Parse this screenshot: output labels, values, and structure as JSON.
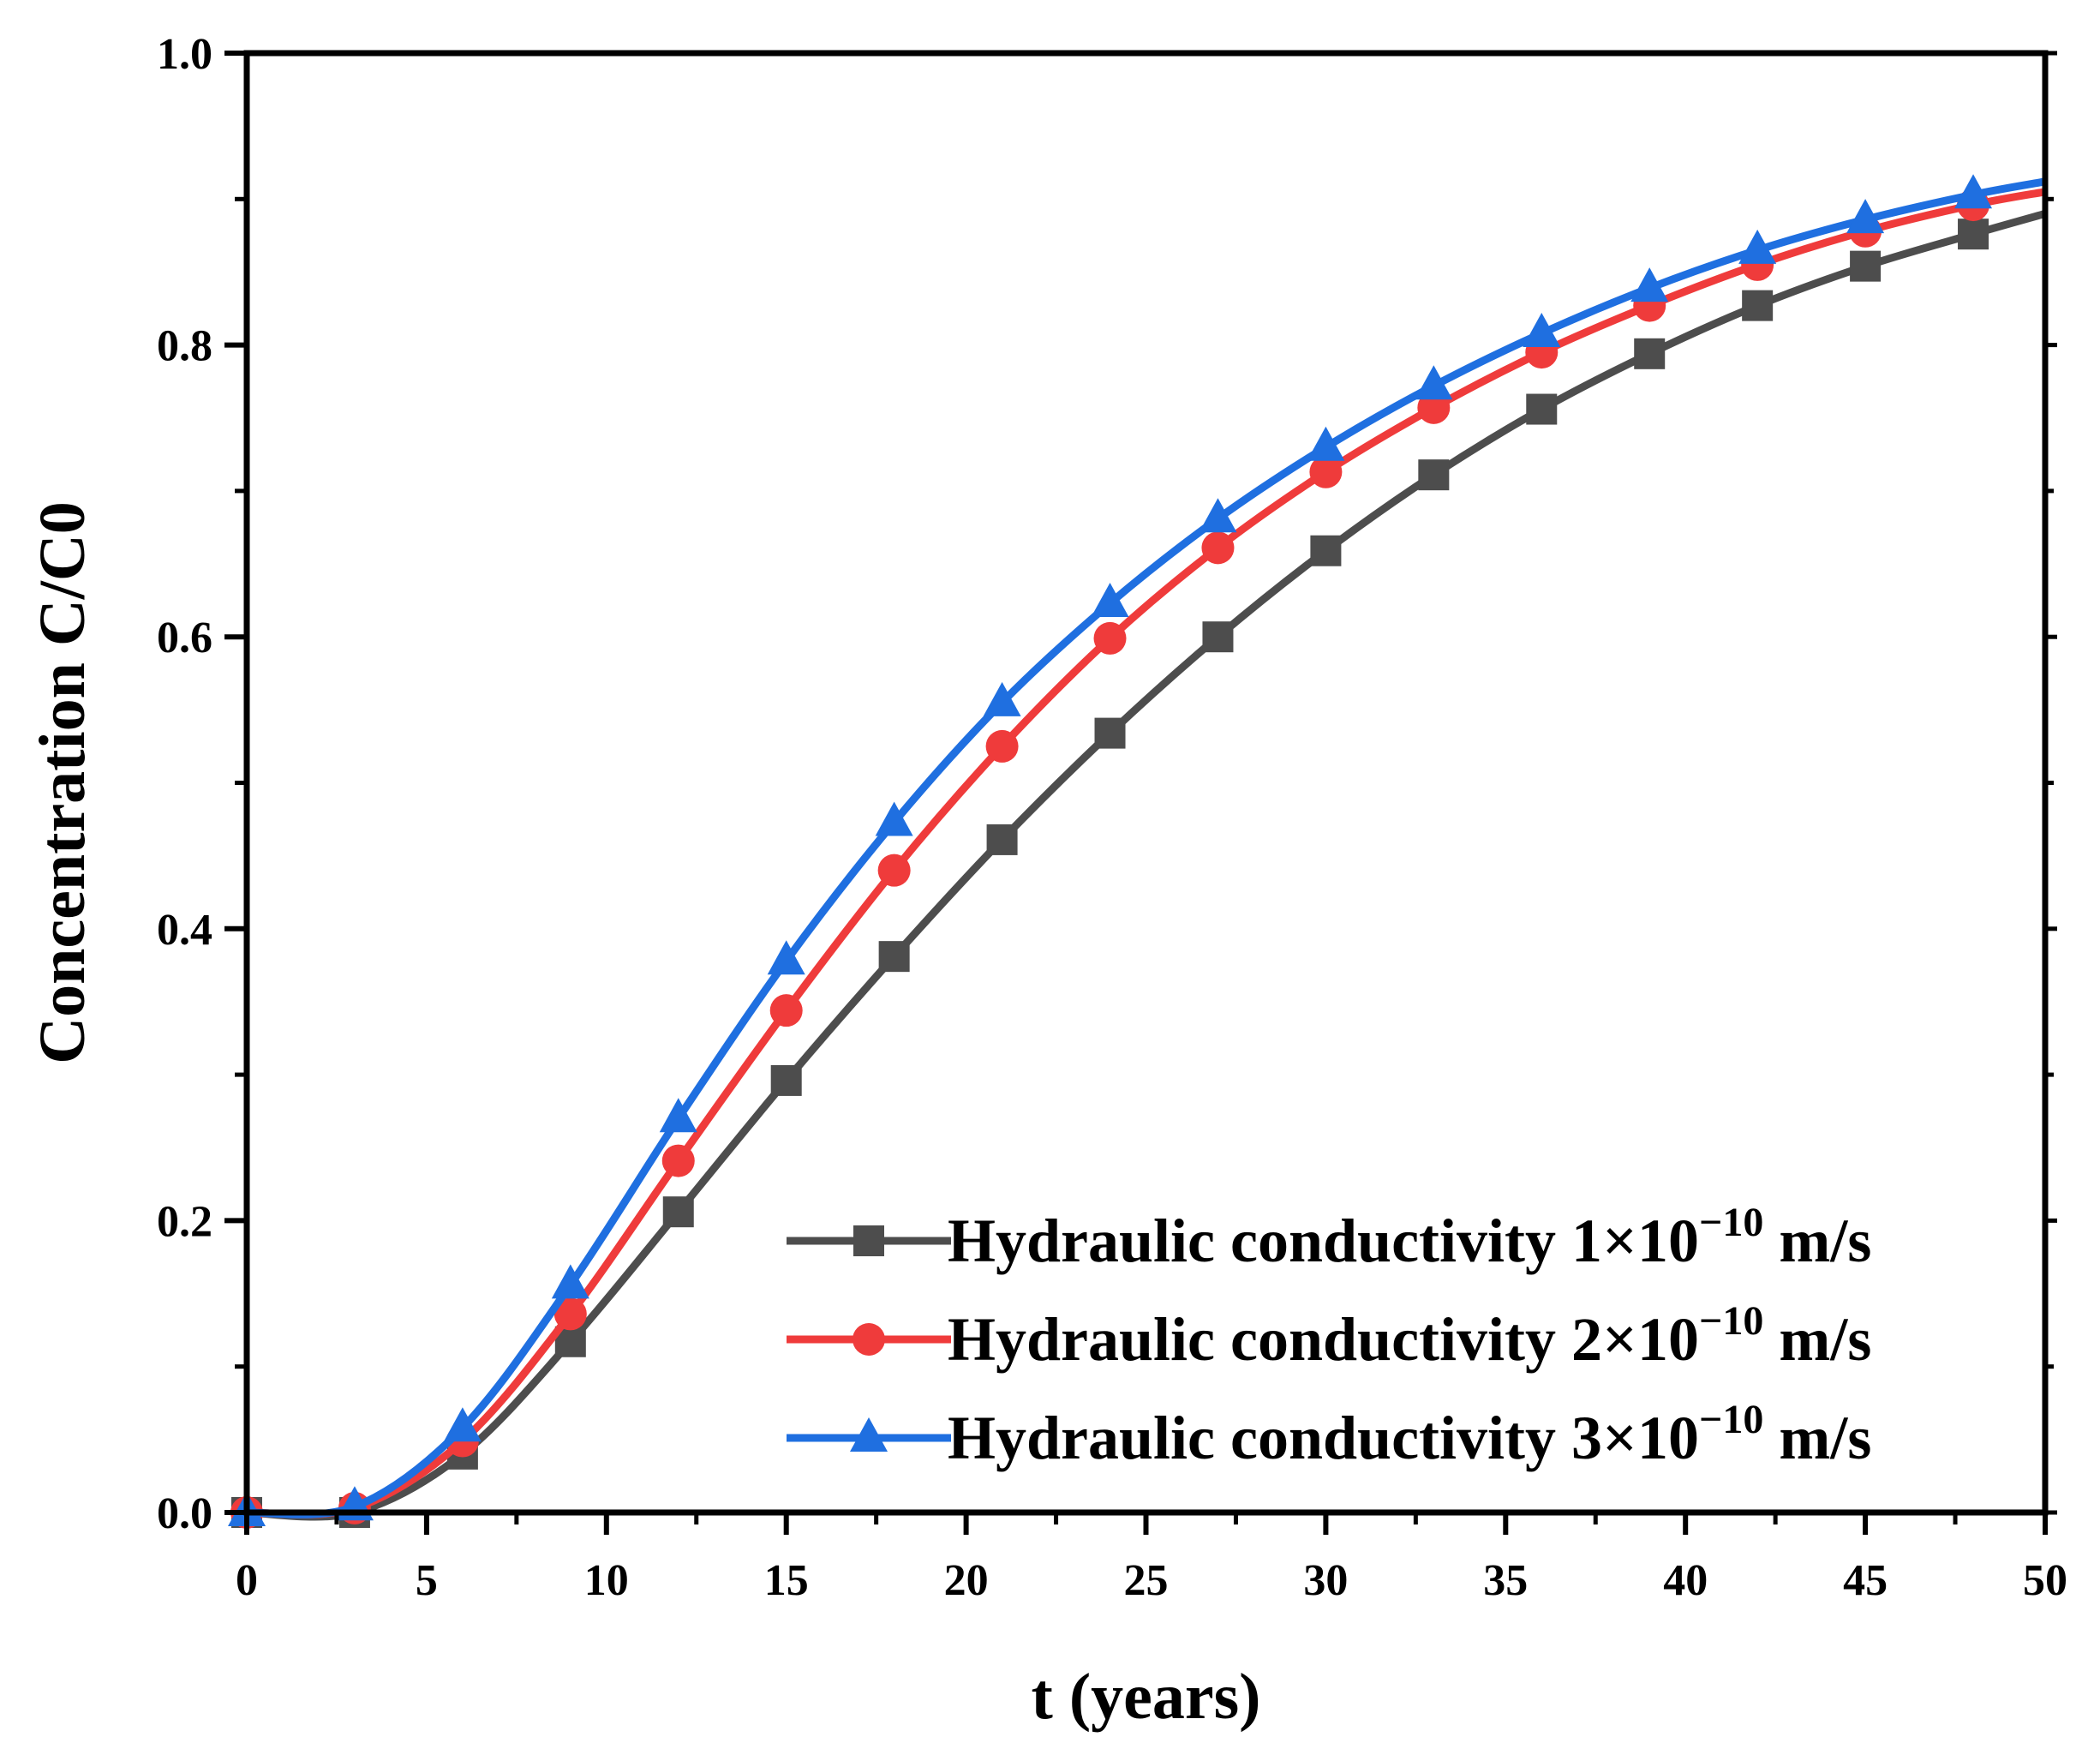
{
  "chart_data": {
    "type": "line",
    "title": "",
    "xlabel": "t (years)",
    "ylabel": "Concentration C/C0",
    "xlim": [
      0,
      50
    ],
    "ylim": [
      0,
      1.0
    ],
    "xticks": [
      0,
      5,
      10,
      15,
      20,
      25,
      30,
      35,
      40,
      45,
      50
    ],
    "xtick_labels": [
      "0",
      "5",
      "10",
      "15",
      "20",
      "25",
      "30",
      "35",
      "40",
      "45",
      "50"
    ],
    "yticks": [
      0,
      0.2,
      0.4,
      0.6,
      0.8,
      1.0
    ],
    "ytick_labels": [
      "0.0",
      "0.2",
      "0.4",
      "0.6",
      "0.8",
      "1.0"
    ],
    "grid": false,
    "legend_position": "bottom-right",
    "series": [
      {
        "name_prefix": "Hydraulic conductivity 1×10",
        "name_exponent": "−10",
        "name_suffix": " m/s",
        "color": "#4d4d4d",
        "marker": "square",
        "x": [
          0,
          3,
          6,
          9,
          12,
          15,
          18,
          21,
          24,
          27,
          30,
          33,
          36,
          39,
          42,
          45,
          48,
          50
        ],
        "y": [
          0.0,
          0.0,
          0.04,
          0.117,
          0.206,
          0.296,
          0.381,
          0.461,
          0.534,
          0.6,
          0.659,
          0.711,
          0.756,
          0.794,
          0.827,
          0.854,
          0.876,
          0.89
        ]
      },
      {
        "name_prefix": "Hydraulic conductivity 2×10",
        "name_exponent": "−10",
        "name_suffix": " m/s",
        "color": "#ef3b3b",
        "marker": "circle",
        "x": [
          0,
          3,
          6,
          9,
          12,
          15,
          18,
          21,
          24,
          27,
          30,
          33,
          36,
          39,
          42,
          45,
          48,
          50
        ],
        "y": [
          0.0,
          0.003,
          0.049,
          0.136,
          0.241,
          0.344,
          0.44,
          0.525,
          0.599,
          0.661,
          0.713,
          0.757,
          0.795,
          0.827,
          0.855,
          0.878,
          0.896,
          0.905
        ]
      },
      {
        "name_prefix": "Hydraulic conductivity 3×10",
        "name_exponent": "−10",
        "name_suffix": " m/s",
        "color": "#1f6fe0",
        "marker": "triangle",
        "x": [
          0,
          3,
          6,
          9,
          12,
          15,
          18,
          21,
          24,
          27,
          30,
          33,
          36,
          39,
          42,
          45,
          48,
          50
        ],
        "y": [
          0.0,
          0.004,
          0.058,
          0.156,
          0.27,
          0.378,
          0.473,
          0.555,
          0.623,
          0.681,
          0.73,
          0.772,
          0.808,
          0.839,
          0.865,
          0.886,
          0.903,
          0.912
        ]
      }
    ]
  }
}
